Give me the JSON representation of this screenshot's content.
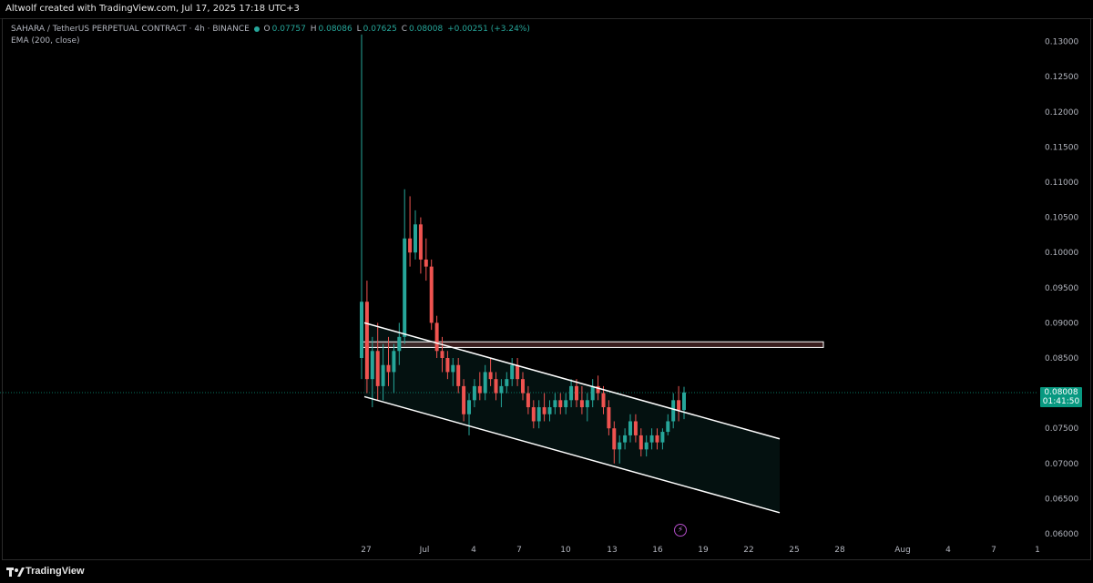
{
  "header": {
    "credit": "Altwolf created with TradingView.com, Jul 17, 2025 17:18 UTC+3"
  },
  "legend": {
    "symbol": "SAHARA / TetherUS PERPETUAL CONTRACT · 4h · BINANCE",
    "o_label": "O",
    "o_value": "0.07757",
    "h_label": "H",
    "h_value": "0.08086",
    "l_label": "L",
    "l_value": "0.07625",
    "c_label": "C",
    "c_value": "0.08008",
    "change": "+0.00251 (+3.24%)",
    "ema": "EMA (200, close)"
  },
  "price_tag": {
    "price": "0.08008",
    "countdown": "01:41:50"
  },
  "footer": {
    "brand": "TradingView"
  },
  "colors": {
    "up": "#26a69a",
    "down": "#ef5350",
    "channel": "#ffffff",
    "zone": "#e57373",
    "tag": "#089981"
  },
  "icons": {
    "lightning": "lightning-icon"
  },
  "chart_data": {
    "type": "candlestick",
    "ylim": [
      0.06,
      0.1315
    ],
    "y_ticks": [
      "0.13000",
      "0.12500",
      "0.12000",
      "0.11500",
      "0.11000",
      "0.10500",
      "0.10000",
      "0.09500",
      "0.09000",
      "0.08500",
      "0.08000",
      "0.07500",
      "0.07000",
      "0.06500",
      "0.06000"
    ],
    "x_ticks": [
      "27",
      "Jul",
      "4",
      "7",
      "10",
      "13",
      "16",
      "19",
      "22",
      "25",
      "28",
      "Aug",
      "4",
      "7",
      "1"
    ],
    "last_price": 0.08008,
    "ohlc": [
      [
        0.085,
        0.131,
        0.082,
        0.093
      ],
      [
        0.093,
        0.096,
        0.08,
        0.082
      ],
      [
        0.082,
        0.088,
        0.078,
        0.086
      ],
      [
        0.086,
        0.09,
        0.079,
        0.081
      ],
      [
        0.081,
        0.087,
        0.079,
        0.084
      ],
      [
        0.084,
        0.088,
        0.081,
        0.083
      ],
      [
        0.083,
        0.087,
        0.08,
        0.086
      ],
      [
        0.086,
        0.09,
        0.084,
        0.088
      ],
      [
        0.088,
        0.109,
        0.087,
        0.102
      ],
      [
        0.102,
        0.108,
        0.098,
        0.1
      ],
      [
        0.1,
        0.106,
        0.099,
        0.104
      ],
      [
        0.104,
        0.105,
        0.097,
        0.099
      ],
      [
        0.099,
        0.102,
        0.096,
        0.098
      ],
      [
        0.098,
        0.099,
        0.089,
        0.09
      ],
      [
        0.09,
        0.091,
        0.085,
        0.086
      ],
      [
        0.086,
        0.088,
        0.083,
        0.085
      ],
      [
        0.085,
        0.086,
        0.082,
        0.083
      ],
      [
        0.083,
        0.085,
        0.081,
        0.084
      ],
      [
        0.084,
        0.085,
        0.08,
        0.081
      ],
      [
        0.081,
        0.082,
        0.076,
        0.077
      ],
      [
        0.077,
        0.08,
        0.074,
        0.079
      ],
      [
        0.079,
        0.082,
        0.078,
        0.081
      ],
      [
        0.081,
        0.083,
        0.079,
        0.08
      ],
      [
        0.08,
        0.084,
        0.079,
        0.083
      ],
      [
        0.083,
        0.085,
        0.081,
        0.082
      ],
      [
        0.082,
        0.083,
        0.079,
        0.08
      ],
      [
        0.08,
        0.082,
        0.078,
        0.081
      ],
      [
        0.081,
        0.083,
        0.08,
        0.082
      ],
      [
        0.082,
        0.085,
        0.081,
        0.084
      ],
      [
        0.084,
        0.085,
        0.081,
        0.082
      ],
      [
        0.082,
        0.083,
        0.079,
        0.08
      ],
      [
        0.08,
        0.081,
        0.077,
        0.078
      ],
      [
        0.078,
        0.079,
        0.075,
        0.076
      ],
      [
        0.076,
        0.079,
        0.075,
        0.078
      ],
      [
        0.078,
        0.08,
        0.076,
        0.077
      ],
      [
        0.077,
        0.079,
        0.076,
        0.078
      ],
      [
        0.078,
        0.08,
        0.077,
        0.079
      ],
      [
        0.079,
        0.08,
        0.077,
        0.078
      ],
      [
        0.078,
        0.08,
        0.077,
        0.079
      ],
      [
        0.079,
        0.082,
        0.078,
        0.081
      ],
      [
        0.081,
        0.082,
        0.078,
        0.079
      ],
      [
        0.079,
        0.081,
        0.077,
        0.078
      ],
      [
        0.078,
        0.08,
        0.076,
        0.079
      ],
      [
        0.079,
        0.082,
        0.078,
        0.081
      ],
      [
        0.081,
        0.0825,
        0.079,
        0.08
      ],
      [
        0.08,
        0.081,
        0.077,
        0.078
      ],
      [
        0.078,
        0.079,
        0.074,
        0.075
      ],
      [
        0.075,
        0.076,
        0.07,
        0.072
      ],
      [
        0.072,
        0.074,
        0.07,
        0.073
      ],
      [
        0.073,
        0.075,
        0.072,
        0.074
      ],
      [
        0.074,
        0.077,
        0.073,
        0.076
      ],
      [
        0.076,
        0.077,
        0.073,
        0.074
      ],
      [
        0.074,
        0.075,
        0.071,
        0.072
      ],
      [
        0.072,
        0.074,
        0.071,
        0.073
      ],
      [
        0.073,
        0.075,
        0.072,
        0.074
      ],
      [
        0.074,
        0.075,
        0.072,
        0.073
      ],
      [
        0.073,
        0.075,
        0.072,
        0.0745
      ],
      [
        0.0745,
        0.077,
        0.074,
        0.076
      ],
      [
        0.076,
        0.08,
        0.075,
        0.079
      ],
      [
        0.079,
        0.081,
        0.076,
        0.0776
      ],
      [
        0.0776,
        0.0809,
        0.0763,
        0.0801
      ]
    ],
    "channel_upper": [
      [
        0,
        0.09
      ],
      [
        1,
        0.0735
      ]
    ],
    "channel_lower": [
      [
        0,
        0.0795
      ],
      [
        1,
        0.063
      ]
    ],
    "resistance_zone": [
      0.0865,
      0.0873
    ]
  }
}
